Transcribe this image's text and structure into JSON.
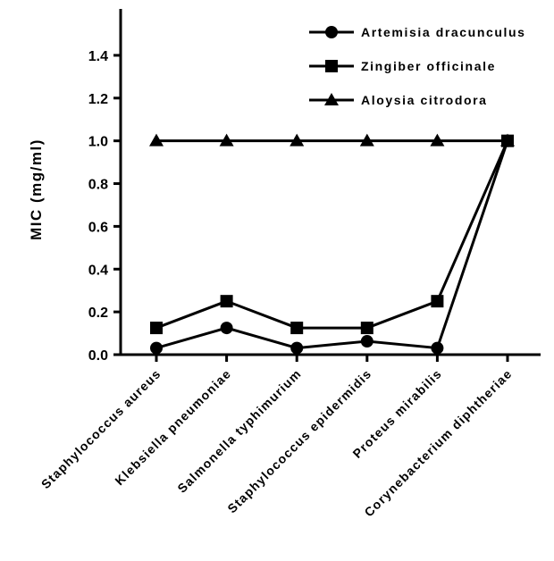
{
  "chart_data": {
    "type": "line",
    "title": "",
    "xlabel": "",
    "ylabel": "MIC (mg/ml)",
    "ylim": [
      0,
      1.5
    ],
    "yticks": [
      "0.0",
      "0.2",
      "0.4",
      "0.6",
      "0.8",
      "1.0",
      "1.2",
      "1.4"
    ],
    "categories": [
      "Staphylococcus aureus",
      "Klebsiella pneumoniae",
      "Salmonella typhimurium",
      "Staphylococcus epidermidis",
      "Proteus mirabilis",
      "Corynebacterium diphtheriae"
    ],
    "series": [
      {
        "name": "Artemisia dracunculus",
        "marker": "circle",
        "values": [
          0.031,
          0.125,
          0.031,
          0.0625,
          0.031,
          1.0
        ]
      },
      {
        "name": "Zingiber officinale",
        "marker": "square",
        "values": [
          0.125,
          0.25,
          0.125,
          0.125,
          0.25,
          1.0
        ]
      },
      {
        "name": "Aloysia citrodora",
        "marker": "triangle",
        "values": [
          1.0,
          1.0,
          1.0,
          1.0,
          1.0,
          1.0
        ]
      }
    ],
    "grid": false,
    "legend_position": "top-right",
    "color": "#000000"
  }
}
